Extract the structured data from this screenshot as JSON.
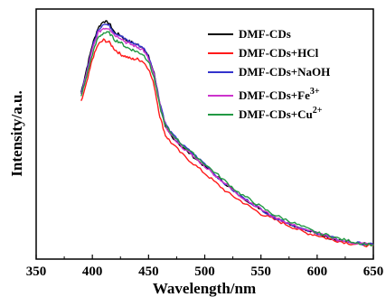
{
  "chart_data": {
    "type": "line",
    "xlabel": "Wavelength/nm",
    "ylabel": "Intensity/a.u.",
    "xlim": [
      350,
      650
    ],
    "x_ticks": [
      "350",
      "400",
      "450",
      "500",
      "550",
      "600",
      "650"
    ],
    "y_ticks": [],
    "ylim": [
      0,
      1.05
    ],
    "legend_position": "top-right",
    "grid": false,
    "x": [
      390,
      395,
      400,
      405,
      410,
      415,
      420,
      425,
      430,
      435,
      440,
      445,
      450,
      455,
      460,
      465,
      470,
      480,
      490,
      500,
      510,
      520,
      530,
      540,
      550,
      560,
      570,
      580,
      590,
      600,
      610,
      620,
      630,
      640,
      650
    ],
    "series": [
      {
        "name": "DMF-CDs",
        "color": "#000000",
        "sup": "",
        "values": [
          0.7,
          0.8,
          0.9,
          0.97,
          1.0,
          0.99,
          0.95,
          0.94,
          0.92,
          0.91,
          0.9,
          0.89,
          0.85,
          0.78,
          0.65,
          0.55,
          0.52,
          0.47,
          0.43,
          0.39,
          0.35,
          0.31,
          0.27,
          0.24,
          0.21,
          0.18,
          0.16,
          0.14,
          0.12,
          0.11,
          0.09,
          0.08,
          0.07,
          0.065,
          0.06
        ]
      },
      {
        "name": "DMF-CDs+HCl",
        "color": "#ff1a1a",
        "sup": "",
        "values": [
          0.66,
          0.74,
          0.84,
          0.9,
          0.92,
          0.91,
          0.88,
          0.86,
          0.85,
          0.84,
          0.84,
          0.83,
          0.8,
          0.73,
          0.6,
          0.52,
          0.49,
          0.44,
          0.4,
          0.36,
          0.32,
          0.28,
          0.25,
          0.22,
          0.19,
          0.17,
          0.15,
          0.13,
          0.11,
          0.1,
          0.085,
          0.075,
          0.065,
          0.06,
          0.055
        ]
      },
      {
        "name": "DMF-CDs+NaOH",
        "color": "#3333cc",
        "sup": "",
        "values": [
          0.69,
          0.79,
          0.89,
          0.96,
          0.99,
          0.98,
          0.95,
          0.94,
          0.92,
          0.91,
          0.9,
          0.89,
          0.85,
          0.78,
          0.66,
          0.57,
          0.53,
          0.48,
          0.44,
          0.4,
          0.35,
          0.31,
          0.27,
          0.24,
          0.21,
          0.18,
          0.16,
          0.14,
          0.12,
          0.11,
          0.095,
          0.08,
          0.07,
          0.065,
          0.06
        ]
      },
      {
        "name": "DMF-CDs+Fe",
        "color": "#cc33cc",
        "sup": "3+",
        "values": [
          0.69,
          0.78,
          0.88,
          0.95,
          0.97,
          0.97,
          0.94,
          0.93,
          0.91,
          0.9,
          0.89,
          0.88,
          0.84,
          0.77,
          0.65,
          0.56,
          0.52,
          0.47,
          0.43,
          0.39,
          0.35,
          0.31,
          0.27,
          0.24,
          0.21,
          0.18,
          0.16,
          0.14,
          0.12,
          0.11,
          0.09,
          0.08,
          0.07,
          0.065,
          0.06
        ]
      },
      {
        "name": "DMF-CDs+Cu",
        "color": "#229944",
        "sup": "2+",
        "values": [
          0.68,
          0.77,
          0.86,
          0.93,
          0.95,
          0.95,
          0.92,
          0.91,
          0.89,
          0.88,
          0.87,
          0.86,
          0.83,
          0.76,
          0.64,
          0.56,
          0.53,
          0.48,
          0.44,
          0.4,
          0.36,
          0.32,
          0.28,
          0.25,
          0.22,
          0.19,
          0.17,
          0.15,
          0.13,
          0.11,
          0.1,
          0.085,
          0.075,
          0.065,
          0.06
        ]
      }
    ]
  }
}
